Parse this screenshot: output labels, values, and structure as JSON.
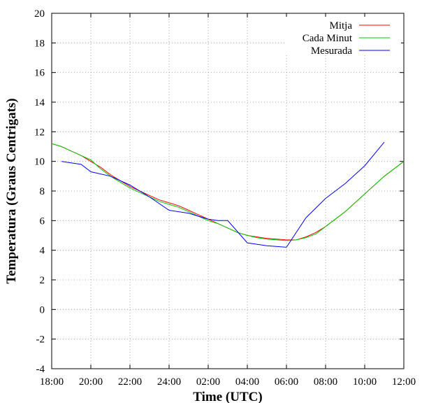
{
  "chart_data": {
    "type": "line",
    "title": "",
    "xlabel": "Time (UTC)",
    "ylabel": "Temperatura (Graus Centrigats)",
    "x_tick_labels": [
      "18:00",
      "20:00",
      "22:00",
      "24:00",
      "02:00",
      "04:00",
      "06:00",
      "08:00",
      "10:00",
      "12:00"
    ],
    "xlim_hours": [
      0,
      18
    ],
    "x_unit": "hours since 18:00 UTC",
    "ylim": [
      -4,
      20
    ],
    "y_ticks": [
      -4,
      -2,
      0,
      2,
      4,
      6,
      8,
      10,
      12,
      14,
      16,
      18,
      20
    ],
    "grid": true,
    "legend_position": "top-right",
    "series": [
      {
        "name": "Mitja",
        "color": "#ff0000",
        "x": [
          0,
          0.5,
          1,
          1.5,
          2,
          2.5,
          3,
          3.5,
          4,
          4.5,
          5,
          5.5,
          6,
          6.5,
          7,
          7.5,
          8,
          8.5,
          9,
          9.5,
          10,
          10.5,
          11,
          11.5,
          12,
          12.5,
          13,
          13.5,
          14,
          14.5,
          15,
          15.5,
          16,
          16.5,
          17,
          17.5,
          18
        ],
        "values": [
          11.2,
          11.0,
          10.7,
          10.4,
          10.0,
          9.6,
          9.1,
          8.7,
          8.3,
          8.0,
          7.7,
          7.4,
          7.2,
          7.0,
          6.7,
          6.4,
          6.1,
          5.8,
          5.5,
          5.2,
          5.0,
          4.9,
          4.8,
          4.75,
          4.7,
          4.7,
          4.9,
          5.2,
          5.6,
          6.1,
          6.6,
          7.2,
          7.8,
          8.4,
          9.0,
          9.5,
          10.0
        ]
      },
      {
        "name": "Cada Minut",
        "color": "#00cc00",
        "x": [
          0,
          0.5,
          1,
          1.5,
          2,
          2.5,
          3,
          3.5,
          4,
          4.5,
          5,
          5.5,
          6,
          6.5,
          7,
          7.5,
          8,
          8.5,
          9,
          9.5,
          10,
          10.5,
          11,
          11.5,
          12,
          12.5,
          13,
          13.5,
          14,
          14.5,
          15,
          15.5,
          16,
          16.5,
          17,
          17.5,
          18
        ],
        "values": [
          11.2,
          11.0,
          10.7,
          10.4,
          10.1,
          9.5,
          9.0,
          8.6,
          8.2,
          7.9,
          7.6,
          7.3,
          7.1,
          6.9,
          6.6,
          6.3,
          6.0,
          5.8,
          5.5,
          5.2,
          5.0,
          4.85,
          4.75,
          4.7,
          4.65,
          4.7,
          4.85,
          5.1,
          5.6,
          6.1,
          6.6,
          7.2,
          7.8,
          8.4,
          9.0,
          9.5,
          10.0
        ]
      },
      {
        "name": "Mesurada",
        "color": "#0000ff",
        "x": [
          0.5,
          1.5,
          2,
          3,
          4,
          5,
          6,
          7,
          8,
          8.5,
          9,
          10,
          11,
          12,
          13,
          14,
          15,
          16,
          17,
          17.5
        ],
        "values": [
          10.0,
          9.8,
          9.3,
          9.0,
          8.4,
          7.6,
          6.7,
          6.5,
          6.1,
          6.0,
          6.0,
          4.5,
          4.3,
          4.2,
          6.2,
          7.5,
          8.5,
          9.7,
          11.3,
          null
        ]
      }
    ]
  }
}
